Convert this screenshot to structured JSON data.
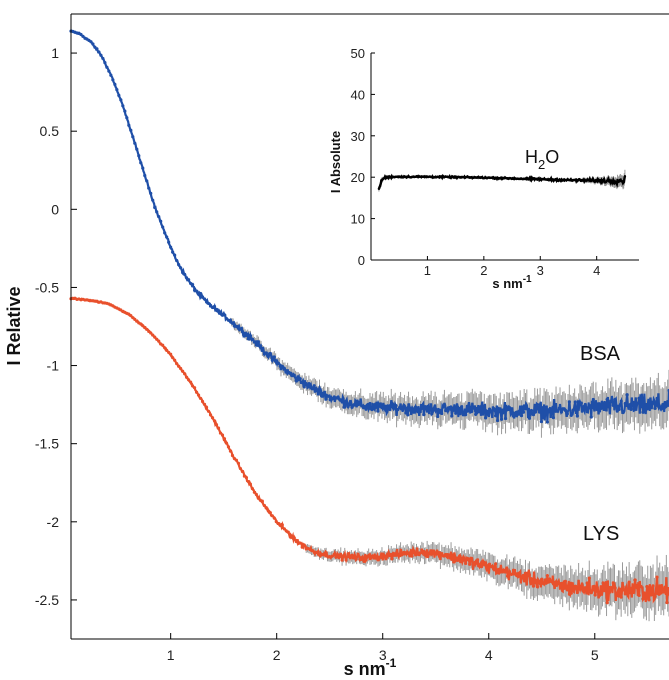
{
  "chart_data": [
    {
      "type": "line",
      "xlabel": "s nm",
      "xlabel_sup": "-1",
      "ylabel": "I Relative",
      "xlim": [
        0.06,
        5.7
      ],
      "ylim": [
        -2.75,
        1.25
      ],
      "xticks": [
        1,
        2,
        3,
        4,
        5
      ],
      "xtick_labels": [
        "1",
        "2",
        "3",
        "4",
        "5"
      ],
      "yticks": [
        1,
        0.5,
        0,
        -0.5,
        -1,
        -1.5,
        -2,
        -2.5
      ],
      "ytick_labels": [
        "1",
        "0.5",
        "0",
        "-0.5",
        "-1",
        "-1.5",
        "-2",
        "-2.5"
      ],
      "grid": false,
      "error_bar_color": "#9a9a9a",
      "series": [
        {
          "name": "BSA",
          "color": "#1f4fa8",
          "x": [
            0.06,
            0.15,
            0.25,
            0.35,
            0.45,
            0.55,
            0.65,
            0.75,
            0.85,
            0.95,
            1.05,
            1.15,
            1.25,
            1.35,
            1.5,
            1.65,
            1.8,
            1.95,
            2.1,
            2.3,
            2.5,
            2.7,
            2.85,
            3.0,
            3.2,
            3.4,
            3.6,
            3.8,
            4.0,
            4.2,
            4.4,
            4.6,
            4.8,
            5.0,
            5.2,
            5.4,
            5.7
          ],
          "y": [
            1.14,
            1.12,
            1.07,
            0.98,
            0.84,
            0.66,
            0.45,
            0.23,
            0.02,
            -0.16,
            -0.32,
            -0.44,
            -0.53,
            -0.6,
            -0.68,
            -0.76,
            -0.85,
            -0.95,
            -1.04,
            -1.13,
            -1.2,
            -1.24,
            -1.26,
            -1.27,
            -1.27,
            -1.28,
            -1.28,
            -1.28,
            -1.29,
            -1.29,
            -1.29,
            -1.29,
            -1.28,
            -1.27,
            -1.26,
            -1.26,
            -1.25
          ],
          "noise": [
            0.004,
            0.004,
            0.004,
            0.005,
            0.005,
            0.005,
            0.005,
            0.005,
            0.006,
            0.006,
            0.007,
            0.008,
            0.009,
            0.01,
            0.011,
            0.013,
            0.015,
            0.017,
            0.019,
            0.022,
            0.025,
            0.028,
            0.03,
            0.032,
            0.034,
            0.036,
            0.038,
            0.04,
            0.042,
            0.044,
            0.046,
            0.048,
            0.05,
            0.052,
            0.055,
            0.058,
            0.06
          ]
        },
        {
          "name": "LYS",
          "color": "#e8502c",
          "x": [
            0.06,
            0.2,
            0.4,
            0.6,
            0.8,
            1.0,
            1.2,
            1.4,
            1.6,
            1.8,
            2.0,
            2.2,
            2.35,
            2.45,
            2.6,
            2.8,
            3.0,
            3.2,
            3.4,
            3.6,
            3.8,
            4.0,
            4.2,
            4.4,
            4.6,
            4.8,
            5.0,
            5.2,
            5.4,
            5.7
          ],
          "y": [
            -0.57,
            -0.58,
            -0.6,
            -0.67,
            -0.78,
            -0.93,
            -1.12,
            -1.34,
            -1.59,
            -1.82,
            -2.0,
            -2.13,
            -2.19,
            -2.21,
            -2.22,
            -2.23,
            -2.22,
            -2.2,
            -2.19,
            -2.21,
            -2.25,
            -2.29,
            -2.33,
            -2.37,
            -2.4,
            -2.42,
            -2.43,
            -2.44,
            -2.44,
            -2.44
          ],
          "noise": [
            0.003,
            0.003,
            0.003,
            0.003,
            0.004,
            0.004,
            0.005,
            0.006,
            0.007,
            0.008,
            0.009,
            0.011,
            0.013,
            0.014,
            0.016,
            0.018,
            0.02,
            0.022,
            0.024,
            0.027,
            0.03,
            0.033,
            0.036,
            0.04,
            0.044,
            0.048,
            0.052,
            0.056,
            0.06,
            0.065
          ]
        }
      ]
    },
    {
      "type": "line",
      "inset": true,
      "label_main": "H",
      "label_sub": "2",
      "label_tail": "O",
      "xlabel": "s nm",
      "xlabel_sup": "-1",
      "ylabel": "I Absolute",
      "xlim": [
        0.0,
        4.75
      ],
      "ylim": [
        0,
        50
      ],
      "xticks": [
        1,
        2,
        3,
        4
      ],
      "xtick_labels": [
        "1",
        "2",
        "3",
        "4"
      ],
      "yticks": [
        0,
        10,
        20,
        30,
        40,
        50
      ],
      "ytick_labels": [
        "0",
        "10",
        "20",
        "30",
        "40",
        "50"
      ],
      "series": [
        {
          "name": "H2O",
          "color": "#000000",
          "x": [
            0.14,
            0.17,
            0.2,
            0.23,
            0.28,
            0.4,
            0.6,
            1.0,
            1.5,
            2.0,
            2.5,
            3.0,
            3.5,
            4.0,
            4.3,
            4.5
          ],
          "y": [
            17.0,
            18.5,
            19.4,
            19.8,
            20.0,
            20.1,
            20.1,
            20.1,
            20.0,
            19.9,
            19.7,
            19.5,
            19.3,
            19.2,
            19.1,
            19.3
          ],
          "noise": [
            0.3,
            0.3,
            0.3,
            0.2,
            0.2,
            0.15,
            0.15,
            0.15,
            0.15,
            0.15,
            0.15,
            0.2,
            0.2,
            0.3,
            0.5,
            0.7
          ]
        }
      ]
    }
  ]
}
